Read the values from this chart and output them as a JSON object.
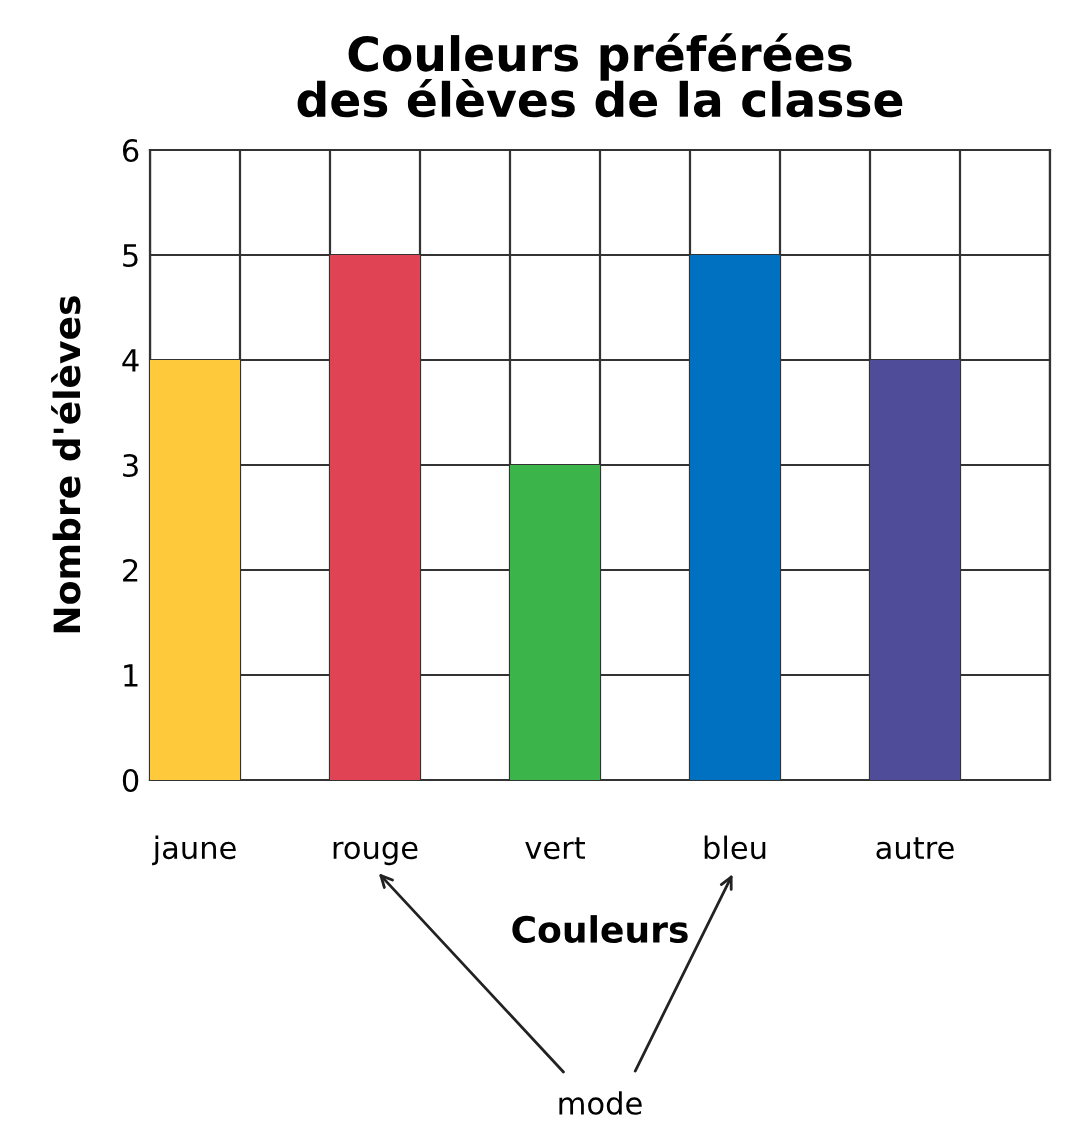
{
  "chart_data": {
    "type": "bar",
    "title": "Couleurs préférées\ndes élèves de la classe",
    "xlabel": "Couleurs",
    "ylabel": "Nombre d'élèves",
    "categories": [
      "jaune",
      "rouge",
      "vert",
      "bleu",
      "autre"
    ],
    "values": [
      4,
      5,
      3,
      5,
      4
    ],
    "colors": [
      "#ffc93c",
      "#e04353",
      "#3bb54a",
      "#0070c0",
      "#4f4d9a"
    ],
    "ylim": [
      0,
      6
    ],
    "yticks": [
      0,
      1,
      2,
      3,
      4,
      5,
      6
    ],
    "grid": true,
    "annotations": [
      "mode"
    ]
  }
}
